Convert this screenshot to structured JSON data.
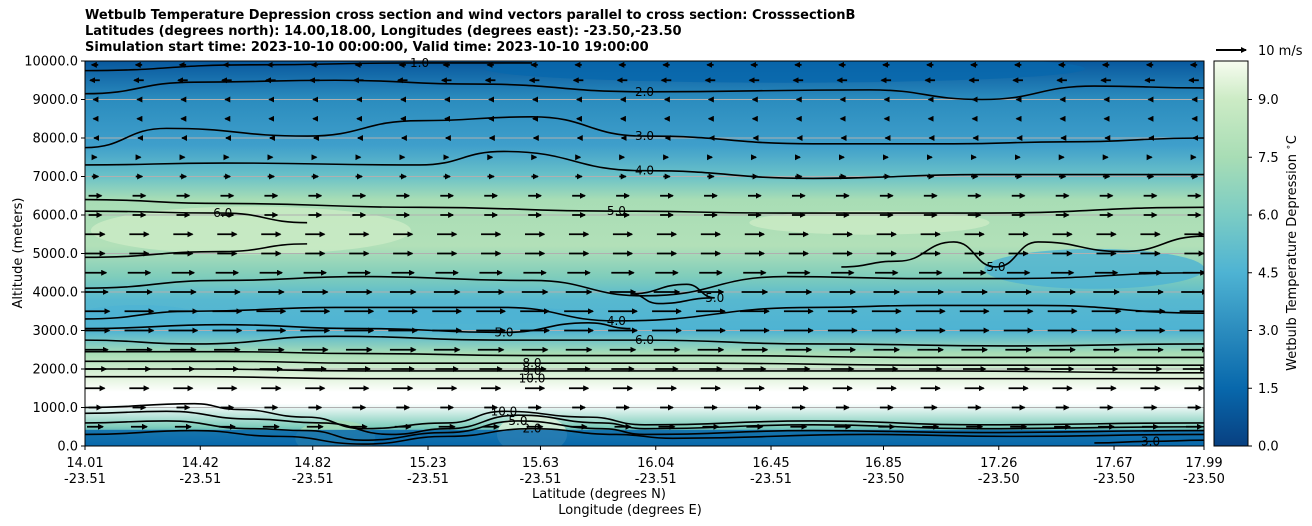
{
  "chart_data": {
    "type": "heatmap",
    "title_lines": [
      "Wetbulb Temperature Depression cross section and wind vectors parallel to cross section: CrosssectionB",
      "Latitudes (degrees north): 14.00,18.00, Longitudes (degrees east): -23.50,-23.50",
      "Simulation start time: 2023-10-10 00:00:00, Valid time: 2023-10-10 19:00:00"
    ],
    "ylabel": "Altitude (meters)",
    "xlabel_1": "Latitude (degrees N)",
    "xlabel_2": "Longitude (degrees E)",
    "ylim": [
      0,
      10000
    ],
    "y_ticks": [
      "0.0",
      "1000.0",
      "2000.0",
      "3000.0",
      "4000.0",
      "5000.0",
      "6000.0",
      "7000.0",
      "8000.0",
      "9000.0",
      "10000.0"
    ],
    "x_ticks": [
      {
        "lat": "14.01",
        "lon": "-23.51"
      },
      {
        "lat": "14.42",
        "lon": "-23.51"
      },
      {
        "lat": "14.82",
        "lon": "-23.51"
      },
      {
        "lat": "15.23",
        "lon": "-23.51"
      },
      {
        "lat": "15.63",
        "lon": "-23.51"
      },
      {
        "lat": "16.04",
        "lon": "-23.51"
      },
      {
        "lat": "16.45",
        "lon": "-23.51"
      },
      {
        "lat": "16.85",
        "lon": "-23.50"
      },
      {
        "lat": "17.26",
        "lon": "-23.50"
      },
      {
        "lat": "17.67",
        "lon": "-23.50"
      },
      {
        "lat": "17.99",
        "lon": "-23.50"
      }
    ],
    "x_tick_values": [
      14.01,
      14.42,
      14.82,
      15.23,
      15.63,
      16.04,
      16.45,
      16.85,
      17.26,
      17.67,
      17.99
    ],
    "colorbar": {
      "label": "Wetbulb Temperature Depression $^\\circ$C",
      "range": [
        0,
        10
      ],
      "ticks": [
        "0.0",
        "1.5",
        "3.0",
        "4.5",
        "6.0",
        "7.5",
        "9.0"
      ],
      "tick_values": [
        0,
        1.5,
        3,
        4.5,
        6,
        7.5,
        9
      ],
      "colormap": "GnBu_r"
    },
    "wind_key": {
      "label": "10 m/s"
    },
    "contours": [
      {
        "level": 1.0,
        "label": "1.0",
        "points": [
          [
            14.01,
            9750
          ],
          [
            14.6,
            9900
          ],
          [
            15.2,
            9950
          ],
          [
            15.6,
            9950
          ]
        ]
      },
      {
        "level": 2.0,
        "label": "2.0",
        "points": [
          [
            14.01,
            9150
          ],
          [
            14.4,
            9450
          ],
          [
            14.9,
            9500
          ],
          [
            15.4,
            9400
          ],
          [
            16.0,
            9200
          ],
          [
            16.8,
            9250
          ],
          [
            17.2,
            9000
          ],
          [
            17.6,
            9350
          ],
          [
            17.99,
            9300
          ]
        ]
      },
      {
        "level": 3.0,
        "label": "3.0",
        "points": [
          [
            14.01,
            7750
          ],
          [
            14.3,
            8250
          ],
          [
            14.8,
            8050
          ],
          [
            15.2,
            8450
          ],
          [
            15.6,
            8550
          ],
          [
            16.0,
            8050
          ],
          [
            16.6,
            7850
          ],
          [
            17.1,
            7850
          ],
          [
            17.5,
            7900
          ],
          [
            17.99,
            8000
          ]
        ]
      },
      {
        "level": 4.0,
        "label": "4.0",
        "points": [
          [
            14.01,
            7300
          ],
          [
            14.5,
            7350
          ],
          [
            15.2,
            7300
          ],
          [
            15.5,
            7650
          ],
          [
            16.0,
            7150
          ],
          [
            16.6,
            6950
          ],
          [
            17.2,
            7050
          ],
          [
            17.99,
            7050
          ]
        ]
      },
      {
        "level": 5.0,
        "label": "5.0",
        "points": [
          [
            14.01,
            6400
          ],
          [
            14.5,
            6300
          ],
          [
            15.2,
            6200
          ],
          [
            15.9,
            6100
          ],
          [
            16.5,
            6050
          ],
          [
            17.2,
            6050
          ],
          [
            17.99,
            6200
          ]
        ]
      },
      {
        "level": 6.0,
        "label": "6.0",
        "points": [
          [
            14.01,
            6100
          ],
          [
            14.5,
            6050
          ],
          [
            14.8,
            5800
          ]
        ]
      },
      {
        "level": 6.0,
        "label": "",
        "points": [
          [
            14.01,
            4900
          ],
          [
            14.5,
            5050
          ],
          [
            14.8,
            5250
          ]
        ]
      },
      {
        "level": 5.0,
        "label": "5.0",
        "points": [
          [
            16.7,
            4650
          ],
          [
            16.9,
            4800
          ],
          [
            17.1,
            5300
          ],
          [
            17.25,
            4650
          ],
          [
            17.4,
            5300
          ],
          [
            17.7,
            5050
          ],
          [
            17.99,
            5450
          ]
        ]
      },
      {
        "level": 5.0,
        "label": "",
        "points": [
          [
            14.01,
            4100
          ],
          [
            14.5,
            4300
          ],
          [
            15.0,
            4400
          ],
          [
            15.6,
            4300
          ],
          [
            16.0,
            3900
          ],
          [
            16.5,
            4400
          ],
          [
            17.0,
            4350
          ],
          [
            17.3,
            4350
          ],
          [
            17.99,
            4500
          ]
        ]
      },
      {
        "level": 5.0,
        "label": "5.0",
        "points": [
          [
            15.95,
            3950
          ],
          [
            16.15,
            4200
          ],
          [
            16.25,
            3850
          ],
          [
            16.05,
            3700
          ],
          [
            15.95,
            3950
          ]
        ]
      },
      {
        "level": 4.0,
        "label": "4.0",
        "points": [
          [
            14.01,
            3300
          ],
          [
            14.4,
            3500
          ],
          [
            14.9,
            3600
          ],
          [
            15.5,
            3600
          ],
          [
            15.9,
            3250
          ],
          [
            16.6,
            3600
          ],
          [
            17.0,
            3650
          ],
          [
            17.4,
            3650
          ],
          [
            17.99,
            3450
          ]
        ]
      },
      {
        "level": 5.0,
        "label": "5.0",
        "points": [
          [
            14.01,
            3050
          ],
          [
            14.5,
            3150
          ],
          [
            15.0,
            3050
          ],
          [
            15.5,
            2950
          ],
          [
            15.8,
            3200
          ],
          [
            15.95,
            3050
          ]
        ]
      },
      {
        "level": 6.0,
        "label": "6.0",
        "points": [
          [
            14.01,
            2750
          ],
          [
            14.4,
            2650
          ],
          [
            14.9,
            2850
          ],
          [
            15.5,
            2750
          ],
          [
            16.0,
            2750
          ],
          [
            16.6,
            2650
          ],
          [
            17.3,
            2600
          ],
          [
            17.99,
            2650
          ]
        ]
      },
      {
        "level": 7.0,
        "label": "",
        "points": [
          [
            14.01,
            2450
          ],
          [
            14.5,
            2450
          ],
          [
            15.0,
            2400
          ],
          [
            15.6,
            2350
          ],
          [
            16.2,
            2350
          ],
          [
            17.0,
            2300
          ],
          [
            17.99,
            2300
          ]
        ]
      },
      {
        "level": 8.0,
        "label": "8.0",
        "points": [
          [
            14.01,
            2200
          ],
          [
            14.5,
            2200
          ],
          [
            15.0,
            2150
          ],
          [
            15.6,
            2150
          ],
          [
            16.2,
            2150
          ],
          [
            17.0,
            2100
          ],
          [
            17.99,
            2100
          ]
        ]
      },
      {
        "level": 9.0,
        "label": "9.0",
        "points": [
          [
            14.01,
            2000
          ],
          [
            14.4,
            2000
          ],
          [
            15.0,
            1950
          ],
          [
            15.6,
            1950
          ],
          [
            16.2,
            1950
          ],
          [
            17.0,
            1950
          ],
          [
            17.99,
            1900
          ]
        ]
      },
      {
        "level": 10.0,
        "label": "10.0",
        "points": [
          [
            14.01,
            1800
          ],
          [
            14.4,
            1800
          ],
          [
            15.0,
            1750
          ],
          [
            15.6,
            1750
          ],
          [
            16.2,
            1750
          ],
          [
            17.0,
            1750
          ],
          [
            17.99,
            1750
          ]
        ]
      },
      {
        "level": 10.0,
        "label": "10.0",
        "points": [
          [
            14.01,
            1000
          ],
          [
            14.4,
            1100
          ],
          [
            14.55,
            950
          ],
          [
            14.8,
            750
          ],
          [
            15.0,
            450
          ],
          [
            15.3,
            600
          ],
          [
            15.5,
            900
          ],
          [
            15.8,
            750
          ],
          [
            16.0,
            550
          ],
          [
            16.6,
            650
          ],
          [
            17.2,
            550
          ],
          [
            17.99,
            600
          ]
        ]
      },
      {
        "level": 9.0,
        "label": "",
        "points": [
          [
            14.01,
            850
          ],
          [
            14.3,
            900
          ],
          [
            14.6,
            700
          ],
          [
            14.85,
            600
          ],
          [
            15.1,
            300
          ],
          [
            15.3,
            450
          ],
          [
            15.55,
            800
          ],
          [
            15.85,
            600
          ],
          [
            16.0,
            450
          ],
          [
            16.6,
            550
          ],
          [
            17.2,
            450
          ],
          [
            17.99,
            500
          ]
        ]
      },
      {
        "level": 5.0,
        "label": "5.0",
        "points": [
          [
            14.01,
            600
          ],
          [
            14.3,
            650
          ],
          [
            14.6,
            450
          ],
          [
            14.8,
            400
          ],
          [
            15.0,
            150
          ],
          [
            15.3,
            350
          ],
          [
            15.55,
            650
          ],
          [
            15.85,
            450
          ],
          [
            16.0,
            300
          ],
          [
            16.6,
            400
          ],
          [
            17.2,
            350
          ],
          [
            17.99,
            400
          ]
        ]
      },
      {
        "level": 2.0,
        "label": "2.0",
        "points": [
          [
            14.01,
            300
          ],
          [
            14.4,
            400
          ],
          [
            14.7,
            250
          ],
          [
            15.0,
            50
          ],
          [
            15.3,
            250
          ],
          [
            15.6,
            450
          ],
          [
            15.9,
            300
          ],
          [
            16.1,
            200
          ],
          [
            16.8,
            300
          ],
          [
            17.3,
            250
          ],
          [
            17.99,
            300
          ]
        ]
      },
      {
        "level": 3.0,
        "label": "3.0",
        "points": [
          [
            17.6,
            80
          ],
          [
            17.8,
            120
          ],
          [
            17.99,
            150
          ]
        ]
      }
    ],
    "wind_rows": [
      {
        "z": 9900,
        "u": -2
      },
      {
        "z": 9500,
        "u": -3
      },
      {
        "z": 9000,
        "u": -1
      },
      {
        "z": 8500,
        "u": -1
      },
      {
        "z": 8000,
        "u": -0.5
      },
      {
        "z": 7500,
        "u": 1
      },
      {
        "z": 7000,
        "u": 2
      },
      {
        "z": 6500,
        "u": 4
      },
      {
        "z": 6000,
        "u": 4
      },
      {
        "z": 5500,
        "u": 6
      },
      {
        "z": 5000,
        "u": 6
      },
      {
        "z": 4500,
        "u": 7
      },
      {
        "z": 4000,
        "u": 8
      },
      {
        "z": 3500,
        "u": 9
      },
      {
        "z": 3000,
        "u": 9
      },
      {
        "z": 2500,
        "u": 8
      },
      {
        "z": 2000,
        "u": 7
      },
      {
        "z": 1500,
        "u": 6
      },
      {
        "z": 1000,
        "u": 4
      },
      {
        "z": 500,
        "u": 5
      }
    ]
  }
}
